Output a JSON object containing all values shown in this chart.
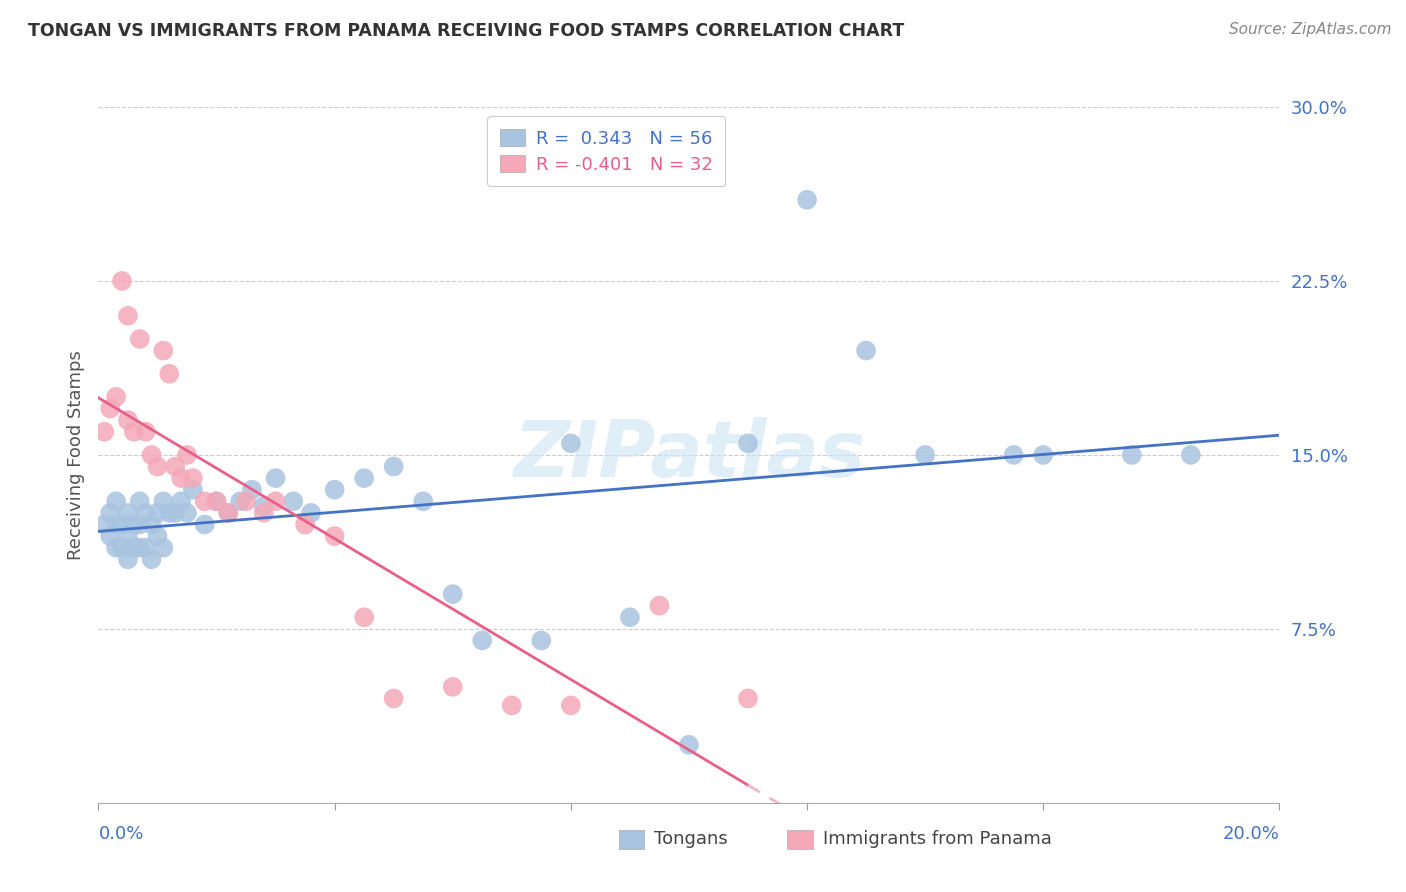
{
  "title": "TONGAN VS IMMIGRANTS FROM PANAMA RECEIVING FOOD STAMPS CORRELATION CHART",
  "source": "Source: ZipAtlas.com",
  "ylabel": "Receiving Food Stamps",
  "xmin": 0.0,
  "xmax": 0.2,
  "ymin": 0.0,
  "ymax": 0.3,
  "yticks": [
    0.0,
    0.075,
    0.15,
    0.225,
    0.3
  ],
  "ytick_labels": [
    "",
    "7.5%",
    "15.0%",
    "22.5%",
    "30.0%"
  ],
  "xticks": [
    0.0,
    0.04,
    0.08,
    0.12,
    0.16,
    0.2
  ],
  "watermark": "ZIPatlas",
  "legend_r1": "R =  0.343   N = 56",
  "legend_r2": "R = -0.401   N = 32",
  "legend_label1": "Tongans",
  "legend_label2": "Immigrants from Panama",
  "blue_color": "#a8c4e0",
  "pink_color": "#f4a8b8",
  "line_blue": "#4472c4",
  "line_pink": "#e8608a",
  "line_pink_dash": "#f0b8c8",
  "tongan_x": [
    0.001,
    0.002,
    0.002,
    0.003,
    0.003,
    0.003,
    0.004,
    0.004,
    0.005,
    0.005,
    0.005,
    0.006,
    0.006,
    0.007,
    0.007,
    0.007,
    0.008,
    0.008,
    0.009,
    0.009,
    0.01,
    0.01,
    0.011,
    0.011,
    0.012,
    0.013,
    0.014,
    0.015,
    0.016,
    0.018,
    0.02,
    0.022,
    0.024,
    0.026,
    0.028,
    0.03,
    0.033,
    0.036,
    0.04,
    0.045,
    0.05,
    0.055,
    0.06,
    0.065,
    0.075,
    0.08,
    0.09,
    0.1,
    0.11,
    0.12,
    0.13,
    0.14,
    0.155,
    0.16,
    0.175,
    0.185
  ],
  "tongan_y": [
    0.12,
    0.125,
    0.115,
    0.13,
    0.12,
    0.11,
    0.12,
    0.11,
    0.125,
    0.115,
    0.105,
    0.12,
    0.11,
    0.13,
    0.12,
    0.11,
    0.125,
    0.11,
    0.12,
    0.105,
    0.125,
    0.115,
    0.13,
    0.11,
    0.125,
    0.125,
    0.13,
    0.125,
    0.135,
    0.12,
    0.13,
    0.125,
    0.13,
    0.135,
    0.128,
    0.14,
    0.13,
    0.125,
    0.135,
    0.14,
    0.145,
    0.13,
    0.09,
    0.07,
    0.07,
    0.155,
    0.08,
    0.025,
    0.155,
    0.26,
    0.195,
    0.15,
    0.15,
    0.15,
    0.15,
    0.15
  ],
  "panama_x": [
    0.001,
    0.002,
    0.003,
    0.004,
    0.005,
    0.005,
    0.006,
    0.007,
    0.008,
    0.009,
    0.01,
    0.011,
    0.012,
    0.013,
    0.014,
    0.015,
    0.016,
    0.018,
    0.02,
    0.022,
    0.025,
    0.028,
    0.03,
    0.035,
    0.04,
    0.045,
    0.05,
    0.06,
    0.07,
    0.08,
    0.095,
    0.11
  ],
  "panama_y": [
    0.16,
    0.17,
    0.175,
    0.225,
    0.21,
    0.165,
    0.16,
    0.2,
    0.16,
    0.15,
    0.145,
    0.195,
    0.185,
    0.145,
    0.14,
    0.15,
    0.14,
    0.13,
    0.13,
    0.125,
    0.13,
    0.125,
    0.13,
    0.12,
    0.115,
    0.08,
    0.045,
    0.05,
    0.042,
    0.042,
    0.085,
    0.045
  ]
}
